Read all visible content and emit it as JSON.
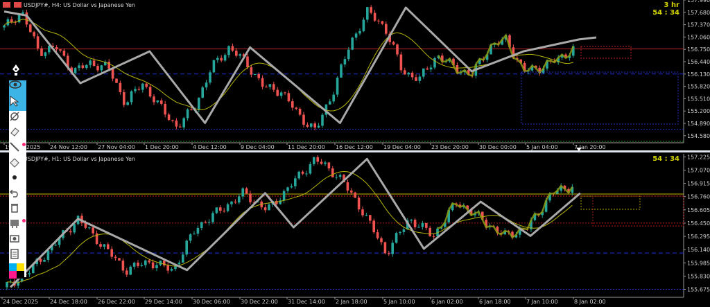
{
  "colors": {
    "bull": "#26a69a",
    "bear": "#ef5350",
    "ma": "#b5b50a",
    "zigzag": "#a9a9a9",
    "overlay": "#8a9a10",
    "grid_axis": "#9a9a9a",
    "timer": "#d4d400",
    "toolbar_active": "#3cb4e5"
  },
  "toolbar": {
    "items": [
      "eye-icon",
      "cursor-arrow-icon",
      "crosshair-off-icon",
      "eraser-icon",
      "line-icon",
      "ruler-icon",
      "dot-icon",
      "undo-icon",
      "trash-icon",
      "template-icon",
      "screenshot-icon",
      "clipboard-icon",
      "color-palette-icon"
    ]
  },
  "chart_data": [
    {
      "type": "candlestick",
      "title": "USDJPY#, H4:  US Dollar vs Japanese Yen",
      "timer": [
        "3 hr",
        "54 : 34"
      ],
      "ylim": [
        154.42,
        157.99
      ],
      "yticks": [
        "157.990",
        "157.680",
        "157.370",
        "157.060",
        "156.750",
        "156.440",
        "156.130",
        "155.820",
        "155.510",
        "155.200",
        "154.890",
        "154.580"
      ],
      "ytick_values": [
        157.99,
        157.68,
        157.37,
        157.06,
        156.75,
        156.44,
        156.13,
        155.82,
        155.51,
        155.2,
        154.89,
        154.58
      ],
      "xticks": [
        "19 Nov 2025",
        "24 Nov 12:00",
        "27 Nov 04:00",
        "1 Dec 20:00",
        "4 Dec 12:00",
        "9 Dec 04:00",
        "11 Dec 20:00",
        "16 Dec 12:00",
        "19 Dec 04:00",
        "23 Dec 20:00",
        "30 Dec 00:00",
        "5 Jan 04:00",
        "7 Jan 20:00"
      ],
      "close_samples": [
        157.3,
        157.7,
        156.7,
        156.8,
        156.2,
        156.4,
        156.3,
        155.4,
        155.9,
        155.3,
        154.8,
        155.3,
        156.3,
        156.8,
        156.4,
        155.8,
        155.7,
        155.1,
        154.7,
        155.7,
        156.9,
        157.7,
        157.3,
        156.2,
        156.0,
        156.6,
        156.3,
        156.1,
        156.8,
        157.0,
        156.2,
        156.3,
        156.5,
        156.8
      ],
      "zigzag": [
        [
          0,
          157.7
        ],
        [
          1.3,
          157.6
        ],
        [
          4.4,
          155.9
        ],
        [
          8.4,
          156.7
        ],
        [
          11.6,
          154.9
        ],
        [
          14.2,
          156.8
        ],
        [
          19.4,
          154.9
        ],
        [
          23.2,
          157.8
        ],
        [
          27,
          156.2
        ],
        [
          30,
          156.7
        ],
        [
          33.2,
          157.0
        ],
        [
          34.2,
          157.05
        ]
      ],
      "hlines": [
        {
          "price": 156.76,
          "color": "#b22222",
          "style": "solid"
        },
        {
          "price": 156.13,
          "color": "#2030d0",
          "style": "dashed"
        },
        {
          "price": 154.74,
          "color": "#2030c0",
          "style": "dotted"
        },
        {
          "price": 154.44,
          "color": "#1f8f1f",
          "style": "dotted"
        }
      ]
    },
    {
      "type": "candlestick",
      "title": "USDJPY#, H1:  US Dollar vs Japanese Yen",
      "timer": [
        "54 : 34"
      ],
      "ylim": [
        155.59,
        157.26
      ],
      "yticks": [
        "157.225",
        "157.070",
        "156.915",
        "156.760",
        "156.605",
        "156.450",
        "156.295",
        "156.140",
        "155.985",
        "155.830",
        "155.675"
      ],
      "ytick_values": [
        157.225,
        157.07,
        156.915,
        156.76,
        156.605,
        156.45,
        156.295,
        156.14,
        155.985,
        155.83,
        155.675
      ],
      "xticks": [
        "24 Dec 2025",
        "24 Dec 18:00",
        "26 Dec 22:00",
        "29 Dec 14:00",
        "30 Dec 06:00",
        "30 Dec 22:00",
        "31 Dec 14:00",
        "2 Jan 18:00",
        "5 Jan 10:00",
        "6 Jan 02:00",
        "6 Jan 18:00",
        "7 Jan 10:00",
        "8 Jan 02:00"
      ],
      "close_samples": [
        155.7,
        155.9,
        156.2,
        156.5,
        156.2,
        155.9,
        156.0,
        155.9,
        156.4,
        156.6,
        156.8,
        156.6,
        156.9,
        157.2,
        157.0,
        156.6,
        156.1,
        156.5,
        156.3,
        156.7,
        156.5,
        156.3,
        156.4,
        156.8,
        156.9
      ],
      "zigzag": [
        [
          0.15,
          155.7
        ],
        [
          3,
          156.5
        ],
        [
          7.6,
          155.9
        ],
        [
          10.9,
          156.8
        ],
        [
          12.1,
          156.4
        ],
        [
          15.2,
          157.2
        ],
        [
          17.6,
          156.15
        ],
        [
          20,
          156.7
        ],
        [
          22.1,
          156.3
        ],
        [
          24.2,
          156.8
        ]
      ],
      "hlines": [
        {
          "price": 156.79,
          "color": "#c8b400",
          "style": "solid"
        },
        {
          "price": 156.765,
          "color": "#d02020",
          "style": "dotted"
        },
        {
          "price": 156.45,
          "color": "#b01818",
          "style": "dotted"
        },
        {
          "price": 156.1,
          "color": "#2030d0",
          "style": "dashed"
        },
        {
          "price": 155.675,
          "color": "#2030c0",
          "style": "dotted"
        }
      ]
    }
  ]
}
